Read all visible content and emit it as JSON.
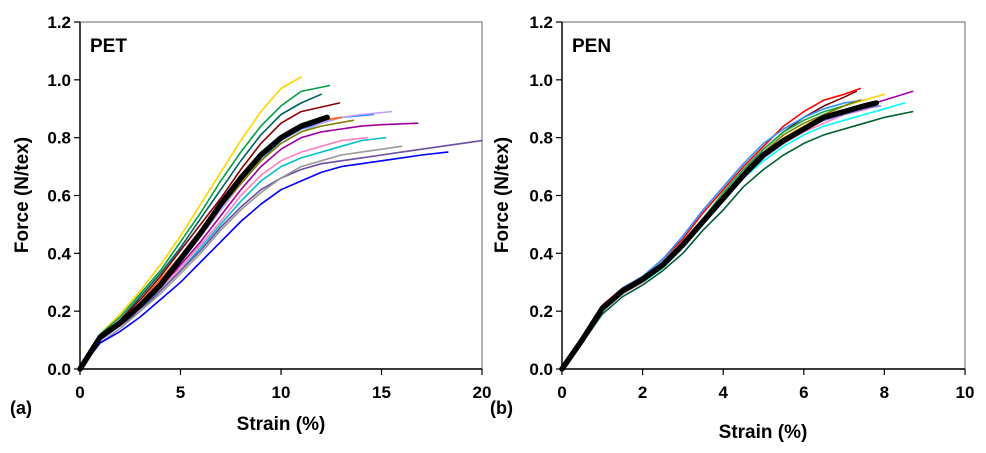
{
  "chart_data": [
    {
      "type": "line",
      "panel_label": "(a)",
      "title": "PET",
      "xlabel": "Strain (%)",
      "ylabel": "Force (N/tex)",
      "xlim": [
        0,
        20
      ],
      "ylim": [
        0,
        1.2
      ],
      "xticks": [
        "0",
        "5",
        "10",
        "15",
        "20"
      ],
      "yticks": [
        "0.0",
        "0.2",
        "0.4",
        "0.6",
        "0.8",
        "1.0",
        "1.2"
      ],
      "grid": false,
      "legend": "none",
      "series": [
        {
          "color": "#000000",
          "bold": true,
          "x": [
            0,
            1,
            2,
            3,
            4,
            5,
            6,
            7,
            8,
            9,
            10,
            11,
            12.3
          ],
          "y": [
            0,
            0.11,
            0.16,
            0.22,
            0.29,
            0.38,
            0.47,
            0.57,
            0.66,
            0.74,
            0.8,
            0.84,
            0.87
          ]
        },
        {
          "color": "#ffd400",
          "x": [
            0,
            1,
            2,
            3,
            4,
            5,
            6,
            7,
            8,
            9,
            10,
            11
          ],
          "y": [
            0,
            0.12,
            0.19,
            0.27,
            0.36,
            0.46,
            0.57,
            0.68,
            0.79,
            0.89,
            0.97,
            1.01
          ]
        },
        {
          "color": "#00a040",
          "x": [
            0,
            1,
            2,
            3,
            4,
            5,
            6,
            7,
            8,
            9,
            10,
            11,
            12.4
          ],
          "y": [
            0,
            0.12,
            0.18,
            0.26,
            0.34,
            0.44,
            0.54,
            0.65,
            0.75,
            0.84,
            0.91,
            0.96,
            0.98
          ]
        },
        {
          "color": "#006060",
          "x": [
            0,
            1,
            2,
            3,
            4,
            5,
            6,
            7,
            8,
            9,
            10,
            11,
            12
          ],
          "y": [
            0,
            0.11,
            0.17,
            0.25,
            0.33,
            0.42,
            0.52,
            0.62,
            0.72,
            0.81,
            0.88,
            0.92,
            0.95
          ]
        },
        {
          "color": "#8b0000",
          "x": [
            0,
            1,
            2,
            3,
            4,
            5,
            6,
            7,
            8,
            9,
            10,
            11,
            12.9
          ],
          "y": [
            0,
            0.11,
            0.17,
            0.24,
            0.32,
            0.41,
            0.5,
            0.59,
            0.69,
            0.78,
            0.85,
            0.89,
            0.92
          ]
        },
        {
          "color": "#2080ff",
          "x": [
            0,
            1,
            2,
            3,
            4,
            5,
            6,
            7,
            8,
            9,
            10,
            11,
            12,
            13,
            14.6
          ],
          "y": [
            0,
            0.1,
            0.16,
            0.22,
            0.29,
            0.37,
            0.46,
            0.55,
            0.64,
            0.72,
            0.79,
            0.83,
            0.85,
            0.87,
            0.88
          ]
        },
        {
          "color": "#c0a0ff",
          "x": [
            0,
            1,
            2,
            3,
            4,
            5,
            6,
            7,
            8,
            9,
            10,
            11,
            12,
            13,
            14,
            15.5
          ],
          "y": [
            0,
            0.1,
            0.16,
            0.22,
            0.29,
            0.37,
            0.46,
            0.55,
            0.64,
            0.72,
            0.78,
            0.82,
            0.85,
            0.87,
            0.88,
            0.89
          ]
        },
        {
          "color": "#a000a0",
          "x": [
            0,
            1,
            2,
            3,
            4,
            5,
            6,
            7,
            8,
            9,
            10,
            11,
            12,
            13,
            14,
            15,
            16.8
          ],
          "y": [
            0,
            0.1,
            0.15,
            0.21,
            0.28,
            0.36,
            0.44,
            0.53,
            0.62,
            0.7,
            0.76,
            0.8,
            0.82,
            0.83,
            0.84,
            0.845,
            0.85
          ]
        },
        {
          "color": "#00c0d0",
          "x": [
            0,
            1,
            2,
            3,
            4,
            5,
            6,
            7,
            8,
            9,
            10,
            11,
            12,
            13,
            14,
            15.2
          ],
          "y": [
            0,
            0.1,
            0.15,
            0.21,
            0.27,
            0.34,
            0.42,
            0.5,
            0.58,
            0.65,
            0.7,
            0.73,
            0.75,
            0.77,
            0.79,
            0.8
          ]
        },
        {
          "color": "#ff80c0",
          "x": [
            0,
            1,
            2,
            3,
            4,
            5,
            6,
            7,
            8,
            9,
            10,
            11,
            12,
            13,
            14.3
          ],
          "y": [
            0,
            0.1,
            0.15,
            0.21,
            0.28,
            0.35,
            0.43,
            0.51,
            0.6,
            0.67,
            0.72,
            0.75,
            0.77,
            0.79,
            0.8
          ]
        },
        {
          "color": "#6b4fa0",
          "x": [
            0,
            1,
            2,
            3,
            4,
            5,
            6,
            7,
            8,
            9,
            10,
            11,
            12,
            13,
            14,
            15,
            16,
            17,
            18,
            19,
            20
          ],
          "y": [
            0,
            0.1,
            0.15,
            0.2,
            0.27,
            0.34,
            0.41,
            0.49,
            0.56,
            0.62,
            0.66,
            0.69,
            0.71,
            0.72,
            0.73,
            0.74,
            0.75,
            0.76,
            0.77,
            0.78,
            0.79
          ]
        },
        {
          "color": "#9a9a9a",
          "x": [
            0,
            1,
            2,
            3,
            4,
            5,
            6,
            7,
            8,
            9,
            10,
            11,
            12,
            13,
            14,
            15,
            16
          ],
          "y": [
            0,
            0.09,
            0.14,
            0.2,
            0.26,
            0.33,
            0.4,
            0.48,
            0.55,
            0.61,
            0.66,
            0.7,
            0.72,
            0.74,
            0.75,
            0.76,
            0.77
          ]
        },
        {
          "color": "#0000ff",
          "x": [
            0,
            1,
            2,
            3,
            4,
            5,
            6,
            7,
            8,
            9,
            10,
            11,
            12,
            13,
            14,
            15,
            16,
            17,
            18.3
          ],
          "y": [
            0,
            0.09,
            0.13,
            0.18,
            0.24,
            0.3,
            0.37,
            0.44,
            0.51,
            0.57,
            0.62,
            0.65,
            0.68,
            0.7,
            0.71,
            0.72,
            0.73,
            0.74,
            0.75
          ]
        },
        {
          "color": "#ff6000",
          "x": [
            0,
            1,
            2,
            3,
            4,
            5,
            6,
            7,
            8,
            9,
            10,
            11,
            12,
            13
          ],
          "y": [
            0,
            0.11,
            0.16,
            0.23,
            0.31,
            0.39,
            0.48,
            0.57,
            0.66,
            0.74,
            0.8,
            0.84,
            0.86,
            0.87
          ]
        },
        {
          "color": "#808000",
          "x": [
            0,
            1,
            2,
            3,
            4,
            5,
            6,
            7,
            8,
            9,
            10,
            11,
            12,
            13.6
          ],
          "y": [
            0,
            0.1,
            0.16,
            0.22,
            0.3,
            0.38,
            0.47,
            0.56,
            0.64,
            0.72,
            0.78,
            0.82,
            0.84,
            0.86
          ]
        }
      ]
    },
    {
      "type": "line",
      "panel_label": "(b)",
      "title": "PEN",
      "xlabel": "Strain (%)",
      "ylabel": "Force (N/tex)",
      "xlim": [
        0,
        10
      ],
      "ylim": [
        0,
        1.2
      ],
      "xticks": [
        "0",
        "2",
        "4",
        "6",
        "8",
        "10"
      ],
      "yticks": [
        "0.0",
        "0.2",
        "0.4",
        "0.6",
        "0.8",
        "1.0",
        "1.2"
      ],
      "grid": false,
      "legend": "none",
      "series": [
        {
          "color": "#000000",
          "bold": true,
          "x": [
            0,
            0.5,
            1,
            1.5,
            2,
            2.5,
            3,
            3.5,
            4,
            4.5,
            5,
            5.5,
            6,
            6.5,
            7,
            7.5,
            7.8
          ],
          "y": [
            0,
            0.1,
            0.21,
            0.27,
            0.31,
            0.36,
            0.43,
            0.51,
            0.59,
            0.67,
            0.74,
            0.79,
            0.83,
            0.87,
            0.89,
            0.91,
            0.92
          ]
        },
        {
          "color": "#ff0000",
          "x": [
            0,
            0.5,
            1,
            1.5,
            2,
            2.5,
            3,
            3.5,
            4,
            4.5,
            5,
            5.5,
            6,
            6.5,
            7,
            7.4
          ],
          "y": [
            0,
            0.11,
            0.22,
            0.28,
            0.32,
            0.38,
            0.45,
            0.54,
            0.62,
            0.7,
            0.77,
            0.84,
            0.89,
            0.93,
            0.95,
            0.97
          ]
        },
        {
          "color": "#800000",
          "x": [
            0,
            0.5,
            1,
            1.5,
            2,
            2.5,
            3,
            3.5,
            4,
            4.5,
            5,
            5.5,
            6,
            6.5,
            7,
            7.3
          ],
          "y": [
            0,
            0.1,
            0.21,
            0.27,
            0.31,
            0.37,
            0.44,
            0.52,
            0.6,
            0.68,
            0.76,
            0.82,
            0.87,
            0.91,
            0.94,
            0.96
          ]
        },
        {
          "color": "#a000a0",
          "x": [
            0,
            0.5,
            1,
            1.5,
            2,
            2.5,
            3,
            3.5,
            4,
            4.5,
            5,
            5.5,
            6,
            6.5,
            7,
            7.5,
            8,
            8.7
          ],
          "y": [
            0,
            0.1,
            0.2,
            0.26,
            0.3,
            0.35,
            0.42,
            0.5,
            0.58,
            0.66,
            0.73,
            0.79,
            0.84,
            0.87,
            0.89,
            0.91,
            0.93,
            0.96
          ]
        },
        {
          "color": "#00ffff",
          "x": [
            0,
            0.5,
            1,
            1.5,
            2,
            2.5,
            3,
            3.5,
            4,
            4.5,
            5,
            5.5,
            6,
            6.5,
            7,
            7.5,
            8,
            8.5
          ],
          "y": [
            0,
            0.1,
            0.2,
            0.26,
            0.3,
            0.35,
            0.42,
            0.5,
            0.58,
            0.66,
            0.72,
            0.77,
            0.81,
            0.84,
            0.86,
            0.88,
            0.9,
            0.92
          ]
        },
        {
          "color": "#006030",
          "x": [
            0,
            0.5,
            1,
            1.5,
            2,
            2.5,
            3,
            3.5,
            4,
            4.5,
            5,
            5.5,
            6,
            6.5,
            7,
            7.5,
            8,
            8.7
          ],
          "y": [
            0,
            0.09,
            0.19,
            0.25,
            0.29,
            0.34,
            0.4,
            0.48,
            0.55,
            0.63,
            0.69,
            0.74,
            0.78,
            0.81,
            0.83,
            0.85,
            0.87,
            0.89
          ]
        },
        {
          "color": "#3090ff",
          "x": [
            0,
            0.5,
            1,
            1.5,
            2,
            2.5,
            3,
            3.5,
            4,
            4.5,
            5,
            5.5,
            6,
            6.5,
            7,
            7.5
          ],
          "y": [
            0,
            0.11,
            0.21,
            0.28,
            0.32,
            0.38,
            0.46,
            0.55,
            0.63,
            0.71,
            0.78,
            0.83,
            0.87,
            0.9,
            0.92,
            0.93
          ]
        },
        {
          "color": "#ffd400",
          "x": [
            0,
            0.5,
            1,
            1.5,
            2,
            2.5,
            3,
            3.5,
            4,
            4.5,
            5,
            5.5,
            6,
            6.5,
            7,
            7.5,
            8
          ],
          "y": [
            0,
            0.1,
            0.2,
            0.27,
            0.31,
            0.36,
            0.43,
            0.51,
            0.59,
            0.67,
            0.74,
            0.8,
            0.84,
            0.88,
            0.91,
            0.93,
            0.95
          ]
        },
        {
          "color": "#00b050",
          "x": [
            0,
            0.5,
            1,
            1.5,
            2,
            2.5,
            3,
            3.5,
            4,
            4.5,
            5,
            5.5,
            6,
            6.5,
            7,
            7.2
          ],
          "y": [
            0,
            0.1,
            0.21,
            0.27,
            0.31,
            0.37,
            0.44,
            0.52,
            0.61,
            0.69,
            0.76,
            0.82,
            0.86,
            0.89,
            0.91,
            0.92
          ]
        },
        {
          "color": "#ff80c0",
          "x": [
            0,
            0.5,
            1,
            1.5,
            2,
            2.5,
            3,
            3.5,
            4,
            4.5,
            5,
            5.5,
            6,
            6.5,
            7,
            7.6
          ],
          "y": [
            0,
            0.1,
            0.2,
            0.26,
            0.3,
            0.36,
            0.43,
            0.51,
            0.59,
            0.67,
            0.73,
            0.78,
            0.82,
            0.85,
            0.88,
            0.9
          ]
        },
        {
          "color": "#8080ff",
          "x": [
            0,
            0.5,
            1,
            1.5,
            2,
            2.5,
            3,
            3.5,
            4,
            4.5,
            5,
            5.5,
            6,
            6.5,
            7,
            7.5,
            7.9
          ],
          "y": [
            0,
            0.1,
            0.2,
            0.27,
            0.31,
            0.36,
            0.43,
            0.51,
            0.59,
            0.67,
            0.74,
            0.79,
            0.83,
            0.86,
            0.88,
            0.9,
            0.91
          ]
        },
        {
          "color": "#808000",
          "x": [
            0,
            0.5,
            1,
            1.5,
            2,
            2.5,
            3,
            3.5,
            4,
            4.5,
            5,
            5.5,
            6,
            6.5,
            7,
            7.4
          ],
          "y": [
            0,
            0.1,
            0.21,
            0.27,
            0.31,
            0.37,
            0.44,
            0.52,
            0.6,
            0.68,
            0.75,
            0.81,
            0.85,
            0.88,
            0.91,
            0.93
          ]
        }
      ]
    }
  ]
}
